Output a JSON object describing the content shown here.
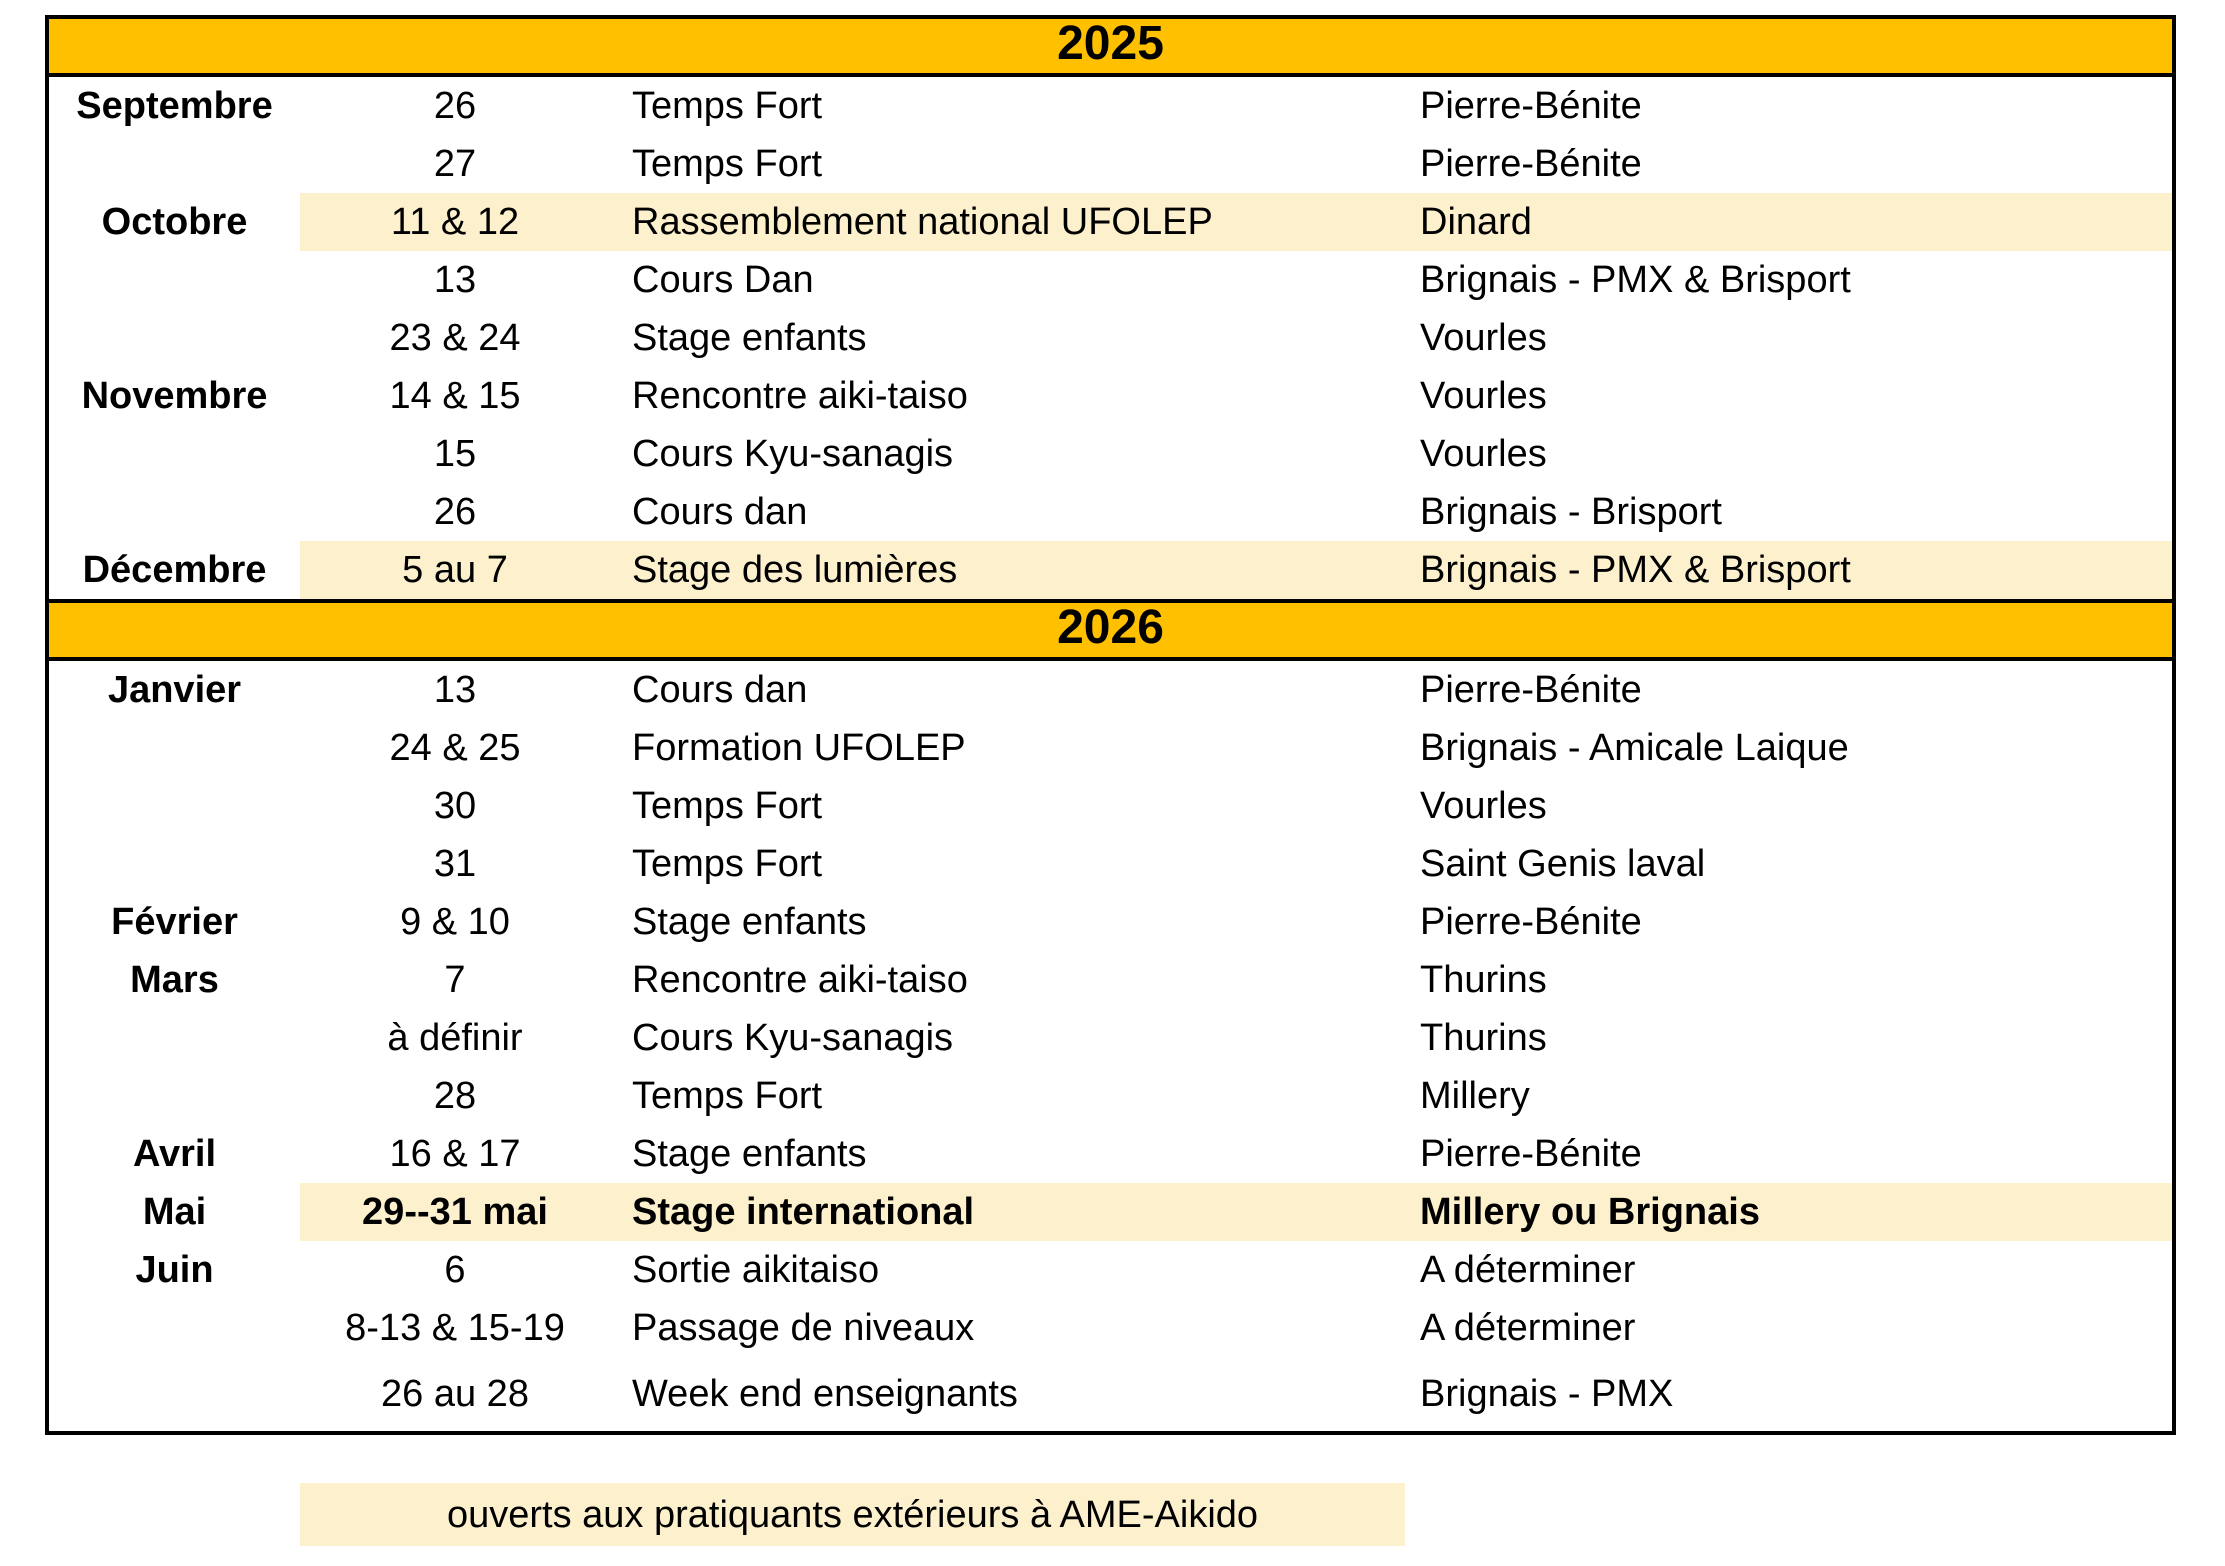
{
  "colors": {
    "year_bar": "#FFC000",
    "highlight": "#FCF0CD",
    "border": "#000000",
    "text": "#000000"
  },
  "footer": {
    "note": "ouverts aux pratiquants extérieurs à AME-Aikido"
  },
  "years": [
    {
      "label": "2025",
      "rows": [
        {
          "month": "Septembre",
          "date": "26",
          "event": "Temps Fort",
          "location": "Pierre-Bénite",
          "highlight": false,
          "bold": false
        },
        {
          "month": "",
          "date": "27",
          "event": "Temps Fort",
          "location": "Pierre-Bénite",
          "highlight": false,
          "bold": false
        },
        {
          "month": "Octobre",
          "date": "11 & 12",
          "event": "Rassemblement national UFOLEP",
          "location": "Dinard",
          "highlight": true,
          "bold": false
        },
        {
          "month": "",
          "date": "13",
          "event": "Cours Dan",
          "location": "Brignais - PMX & Brisport",
          "highlight": false,
          "bold": false
        },
        {
          "month": "",
          "date": "23 & 24",
          "event": "Stage enfants",
          "location": "Vourles",
          "highlight": false,
          "bold": false
        },
        {
          "month": "Novembre",
          "date": "14 & 15",
          "event": "Rencontre aiki-taiso",
          "location": "Vourles",
          "highlight": false,
          "bold": false
        },
        {
          "month": "",
          "date": "15",
          "event": "Cours Kyu-sanagis",
          "location": "Vourles",
          "highlight": false,
          "bold": false
        },
        {
          "month": "",
          "date": "26",
          "event": "Cours dan",
          "location": "Brignais - Brisport",
          "highlight": false,
          "bold": false
        },
        {
          "month": "Décembre",
          "date": "5 au 7",
          "event": "Stage des lumières",
          "location": "Brignais - PMX & Brisport",
          "highlight": true,
          "bold": false
        }
      ]
    },
    {
      "label": "2026",
      "rows": [
        {
          "month": "Janvier",
          "date": "13",
          "event": "Cours dan",
          "location": "Pierre-Bénite",
          "highlight": false,
          "bold": false
        },
        {
          "month": "",
          "date": "24 & 25",
          "event": "Formation UFOLEP",
          "location": "Brignais - Amicale Laique",
          "highlight": false,
          "bold": false
        },
        {
          "month": "",
          "date": "30",
          "event": "Temps Fort",
          "location": "Vourles",
          "highlight": false,
          "bold": false
        },
        {
          "month": "",
          "date": "31",
          "event": "Temps Fort",
          "location": "Saint Genis laval",
          "highlight": false,
          "bold": false
        },
        {
          "month": "Février",
          "date": "9 & 10",
          "event": "Stage enfants",
          "location": "Pierre-Bénite",
          "highlight": false,
          "bold": false
        },
        {
          "month": "Mars",
          "date": "7",
          "event": "Rencontre aiki-taiso",
          "location": "Thurins",
          "highlight": false,
          "bold": false
        },
        {
          "month": "",
          "date": "à définir",
          "event": "Cours Kyu-sanagis",
          "location": "Thurins",
          "highlight": false,
          "bold": false
        },
        {
          "month": "",
          "date": "28",
          "event": "Temps Fort",
          "location": "Millery",
          "highlight": false,
          "bold": false
        },
        {
          "month": "Avril",
          "date": "16 & 17",
          "event": "Stage enfants",
          "location": "Pierre-Bénite",
          "highlight": false,
          "bold": false
        },
        {
          "month": "Mai",
          "date": "29--31 mai",
          "event": "Stage international",
          "location": "Millery ou Brignais",
          "highlight": true,
          "bold": true
        },
        {
          "month": "Juin",
          "date": "6",
          "event": "Sortie aikitaiso",
          "location": "A déterminer",
          "highlight": false,
          "bold": false
        },
        {
          "month": "",
          "date": "8-13 & 15-19",
          "event": "Passage de niveaux",
          "location": "A déterminer",
          "highlight": false,
          "bold": false
        },
        {
          "month": "",
          "date": "26 au 28",
          "event": "Week end enseignants",
          "location": "Brignais - PMX",
          "highlight": false,
          "bold": false,
          "tall": true
        }
      ]
    }
  ]
}
